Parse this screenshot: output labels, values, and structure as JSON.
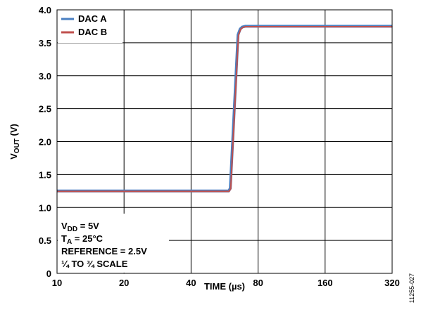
{
  "chart_data": {
    "type": "line",
    "xlabel": "TIME (µs)",
    "ylabel_main": "V",
    "ylabel_sub": "OUT",
    "ylabel_unit": " (V)",
    "x_scale": "log2",
    "xlim": [
      10,
      320
    ],
    "ylim": [
      0,
      4.0
    ],
    "x_ticks": [
      10,
      20,
      40,
      80,
      160,
      320
    ],
    "x_tick_labels": [
      "10",
      "20",
      "40",
      "80",
      "160",
      "320"
    ],
    "y_ticks": [
      0,
      0.5,
      1.0,
      1.5,
      2.0,
      2.5,
      3.0,
      3.5,
      4.0
    ],
    "y_tick_labels": [
      "0",
      "0.5",
      "1.0",
      "1.5",
      "2.0",
      "2.5",
      "3.0",
      "3.5",
      "4.0"
    ],
    "grid": true,
    "legend_position": "top-left",
    "series": [
      {
        "name": "DAC A",
        "color": "#4a7fc1",
        "x": [
          10,
          50,
          59,
          60,
          65,
          66.5,
          68,
          70,
          320
        ],
        "y": [
          1.25,
          1.25,
          1.25,
          1.29,
          3.62,
          3.71,
          3.74,
          3.75,
          3.75
        ]
      },
      {
        "name": "DAC B",
        "color": "#c0504d",
        "x": [
          10,
          50,
          59,
          60,
          65,
          66.5,
          68,
          70,
          320
        ],
        "y": [
          1.25,
          1.25,
          1.25,
          1.29,
          3.62,
          3.71,
          3.74,
          3.75,
          3.75
        ]
      }
    ],
    "annotation_lines": [
      {
        "main": "V",
        "sub": "DD",
        "rest": " = 5V"
      },
      {
        "main": "T",
        "sub": "A",
        "rest": " = 25°C"
      },
      {
        "main": "REFERENCE = 2.5V",
        "sub": "",
        "rest": ""
      },
      {
        "main": "¼ TO ¾ SCALE",
        "sub": "",
        "rest": ""
      }
    ],
    "figure_id": "11255-027"
  }
}
